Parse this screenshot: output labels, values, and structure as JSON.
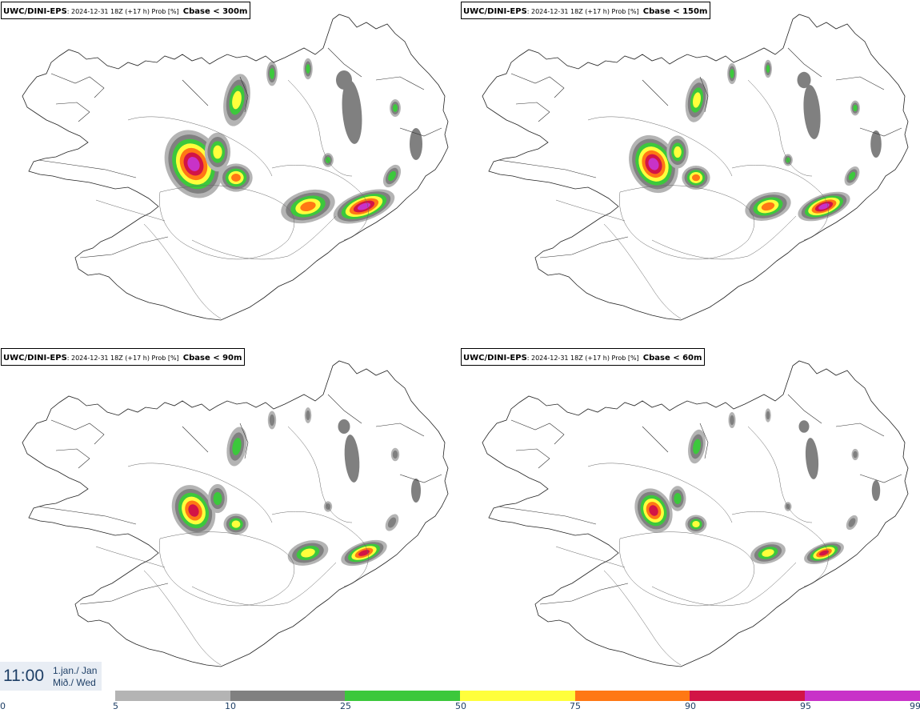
{
  "panels": [
    {
      "model": "UWC/DINI-EPS",
      "meta": ": 2024-12-31 18Z (+17 h) Prob [%]",
      "level": "Cbase < 300m"
    },
    {
      "model": "UWC/DINI-EPS",
      "meta": ": 2024-12-31 18Z (+17 h) Prob [%]",
      "level": "Cbase < 150m"
    },
    {
      "model": "UWC/DINI-EPS",
      "meta": ": 2024-12-31 18Z (+17 h) Prob [%]",
      "level": "Cbase < 90m"
    },
    {
      "model": "UWC/DINI-EPS",
      "meta": ": 2024-12-31 18Z (+17 h) Prob [%]",
      "level": "Cbase < 60m"
    }
  ],
  "clock": {
    "time": "11:00",
    "date_line1": "1.jan./ Jan",
    "date_line2": "Mið./ Wed"
  },
  "legend": {
    "ticks": [
      "0",
      "5",
      "10",
      "25",
      "50",
      "75",
      "90",
      "95",
      "99"
    ],
    "colors": [
      "#ffffff",
      "#b4b4b4",
      "#808080",
      "#3cc83c",
      "#ffff3c",
      "#ff7814",
      "#d21446",
      "#c832c8",
      "#f0c8f0"
    ]
  }
}
